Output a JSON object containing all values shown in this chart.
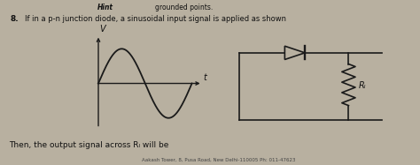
{
  "bg_color": "#b8b0a0",
  "sine_color": "#1a1a1a",
  "axis_color": "#1a1a1a",
  "circuit_color": "#1a1a1a",
  "text_color": "#111111",
  "hint_text": "Hint",
  "grounded_text": "grounded points.",
  "question_num": "8.",
  "question_text": "If in a p-n junction diode, a sinusoidal input signal is applied as shown",
  "bottom_text": "Then, the output signal across Rₗ will be",
  "footer_text": "Aakash Tower, 8, Pusa Road, New Delhi-110005 Ph: 011-47623",
  "V_label": "V",
  "t_label": "t",
  "R_label": "Rₗ"
}
